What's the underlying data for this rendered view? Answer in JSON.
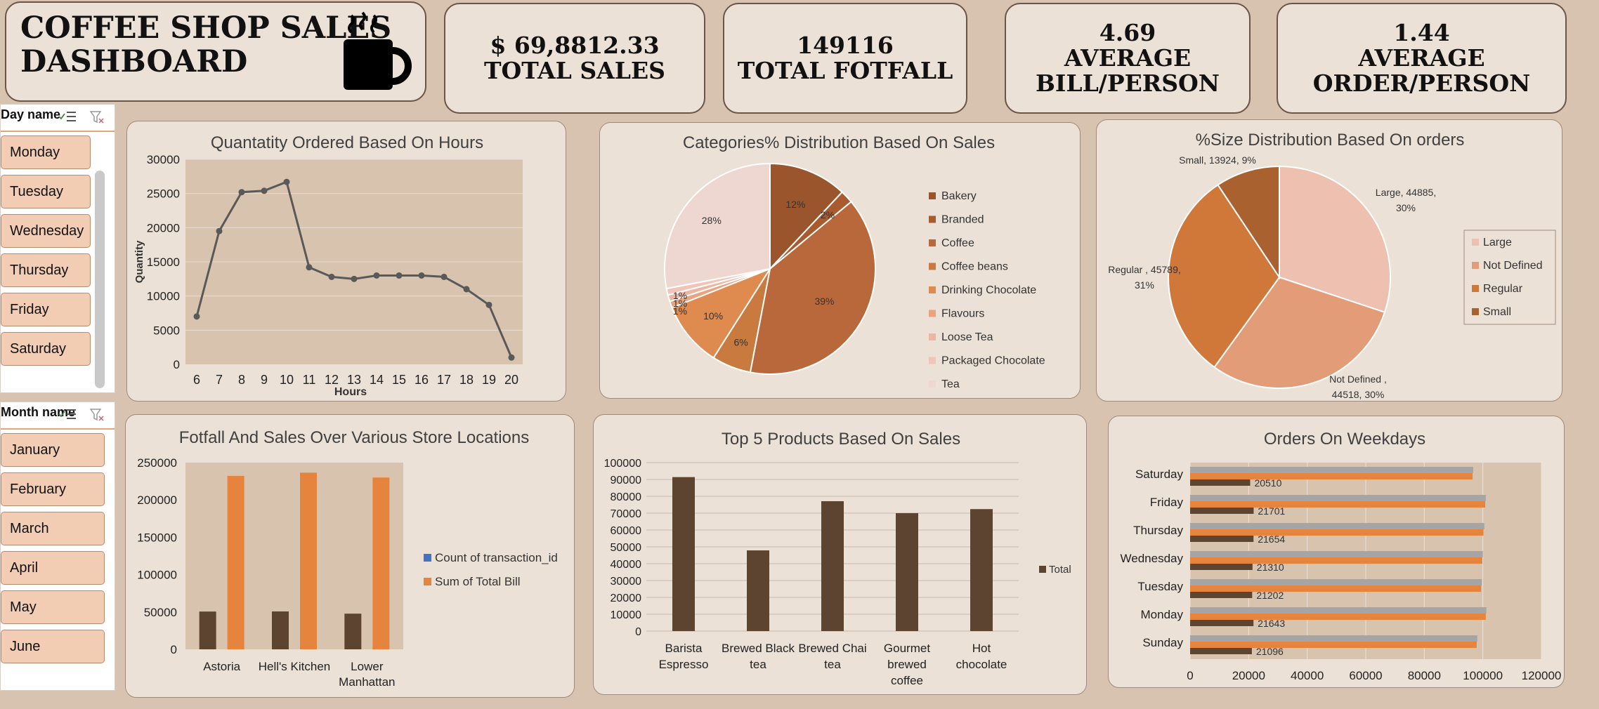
{
  "dashboard": {
    "title_line1": "COFFEE SHOP SALES",
    "title_line2": "DASHBOARD",
    "icon": "coffee-mug-icon"
  },
  "kpis": [
    {
      "value": "$ 69,8812.33",
      "label": "TOTAL SALES"
    },
    {
      "value": "149116",
      "label": "TOTAL FOTFALL"
    },
    {
      "value": "4.69",
      "label_line1": "AVERAGE",
      "label_line2": "BILL/PERSON"
    },
    {
      "value": "1.44",
      "label_line1": "AVERAGE",
      "label_line2": "ORDER/PERSON"
    }
  ],
  "day_slicer": {
    "header": "Day name",
    "items": [
      "Monday",
      "Tuesday",
      "Wednesday",
      "Thursday",
      "Friday",
      "Saturday"
    ]
  },
  "month_slicer": {
    "header": "Month name",
    "items": [
      "January",
      "February",
      "March",
      "April",
      "May",
      "June"
    ]
  },
  "colors": {
    "bg": "#d7c3b0",
    "panel": "#ece1d7",
    "plot": "#d8c3ae",
    "dark_bar": "#5c4431",
    "orange": "#e6843e",
    "line": "#595959",
    "gray_bar": "#a5a5a5"
  },
  "chart_data": [
    {
      "type": "line",
      "title": "Quantatity Ordered  Based On Hours",
      "xlabel": "Hours",
      "ylabel": "Quantity",
      "ylim": [
        0,
        30000
      ],
      "yticks": [
        "0",
        "5000",
        "10000",
        "15000",
        "20000",
        "25000",
        "30000"
      ],
      "x": [
        "6",
        "7",
        "8",
        "9",
        "10",
        "11",
        "12",
        "13",
        "14",
        "15",
        "16",
        "17",
        "18",
        "19",
        "20"
      ],
      "values": [
        7000,
        19500,
        25200,
        25400,
        26700,
        14200,
        12800,
        12500,
        13000,
        13000,
        13000,
        12800,
        11000,
        8700,
        1000
      ],
      "grid": true
    },
    {
      "type": "pie",
      "title": "Categories% Distribution Based On Sales",
      "legend": [
        "Bakery",
        "Branded",
        "Coffee",
        "Coffee beans",
        "Drinking Chocolate",
        "Flavours",
        "Loose Tea",
        "Packaged Chocolate",
        "Tea"
      ],
      "values": [
        12,
        2,
        39,
        6,
        10,
        1,
        1,
        1,
        28
      ],
      "labels": [
        "12%",
        "2%",
        "39%",
        "6%",
        "10%",
        "1%",
        "1%",
        "1%",
        "28%"
      ],
      "colors": [
        "#9a552c",
        "#a85b2f",
        "#b8683a",
        "#c97a3f",
        "#df8a4e",
        "#e9a47d",
        "#ebb7a3",
        "#f0c4b6",
        "#eed7d0"
      ],
      "legend_position": "right"
    },
    {
      "type": "pie",
      "title": "%Size Distribution Based On orders",
      "legend": [
        "Large",
        "Not Defined",
        "Regular",
        "Small"
      ],
      "values": [
        44885,
        44518,
        45789,
        13924
      ],
      "labels": [
        "Large, 44885,|30%",
        "Not Defined ,|44518, 30%",
        "Regular , 45789,|31%",
        "Small, 13924, 9%"
      ],
      "colors": [
        "#edc0b0",
        "#e39c78",
        "#cf783a",
        "#a9622f"
      ],
      "legend_position": "right"
    },
    {
      "type": "bar",
      "title": "Fotfall And Sales Over Various Store Locations",
      "categories": [
        "Astoria",
        "Hell's Kitchen",
        "Lower|Manhattan"
      ],
      "series": [
        {
          "name": "Count of transaction_id",
          "values": [
            50599,
            50735,
            47782
          ]
        },
        {
          "name": "Sum of Total Bill",
          "values": [
            232243,
            236511,
            230057
          ]
        }
      ],
      "ylim": [
        0,
        250000
      ],
      "yticks": [
        "0",
        "50000",
        "100000",
        "150000",
        "200000",
        "250000"
      ],
      "legend_position": "right"
    },
    {
      "type": "bar",
      "title": "Top 5 Products Based On Sales",
      "categories": [
        "Barista|Espresso",
        "Brewed Black|tea",
        "Brewed Chai|tea",
        "Gourmet|brewed|coffee",
        "Hot|chocolate"
      ],
      "values": [
        91400,
        47900,
        77100,
        70000,
        72400
      ],
      "series_name": "Total",
      "ylim": [
        0,
        100000
      ],
      "yticks": [
        "0",
        "10000",
        "20000",
        "30000",
        "40000",
        "50000",
        "60000",
        "70000",
        "80000",
        "90000",
        "100000"
      ],
      "grid": true,
      "legend_position": "right"
    },
    {
      "type": "bar",
      "orientation": "horizontal",
      "title": "Orders On Weekdays",
      "categories": [
        "Saturday",
        "Friday",
        "Thursday",
        "Wednesday",
        "Tuesday",
        "Monday",
        "Sunday"
      ],
      "series": [
        {
          "values": [
            20510,
            21701,
            21654,
            21310,
            21202,
            21643,
            21096
          ],
          "labels": [
            "20510",
            "21701",
            "21654",
            "21310",
            "21202",
            "21643",
            "21096"
          ]
        },
        {
          "values": [
            96500,
            100800,
            100200,
            99800,
            99400,
            101000,
            97900
          ]
        },
        {
          "values": [
            96700,
            101000,
            100500,
            100000,
            99600,
            101200,
            98100
          ]
        }
      ],
      "xlim": [
        0,
        120000
      ],
      "xticks": [
        "0",
        "20000",
        "40000",
        "60000",
        "80000",
        "100000",
        "120000"
      ],
      "grid": true
    }
  ]
}
